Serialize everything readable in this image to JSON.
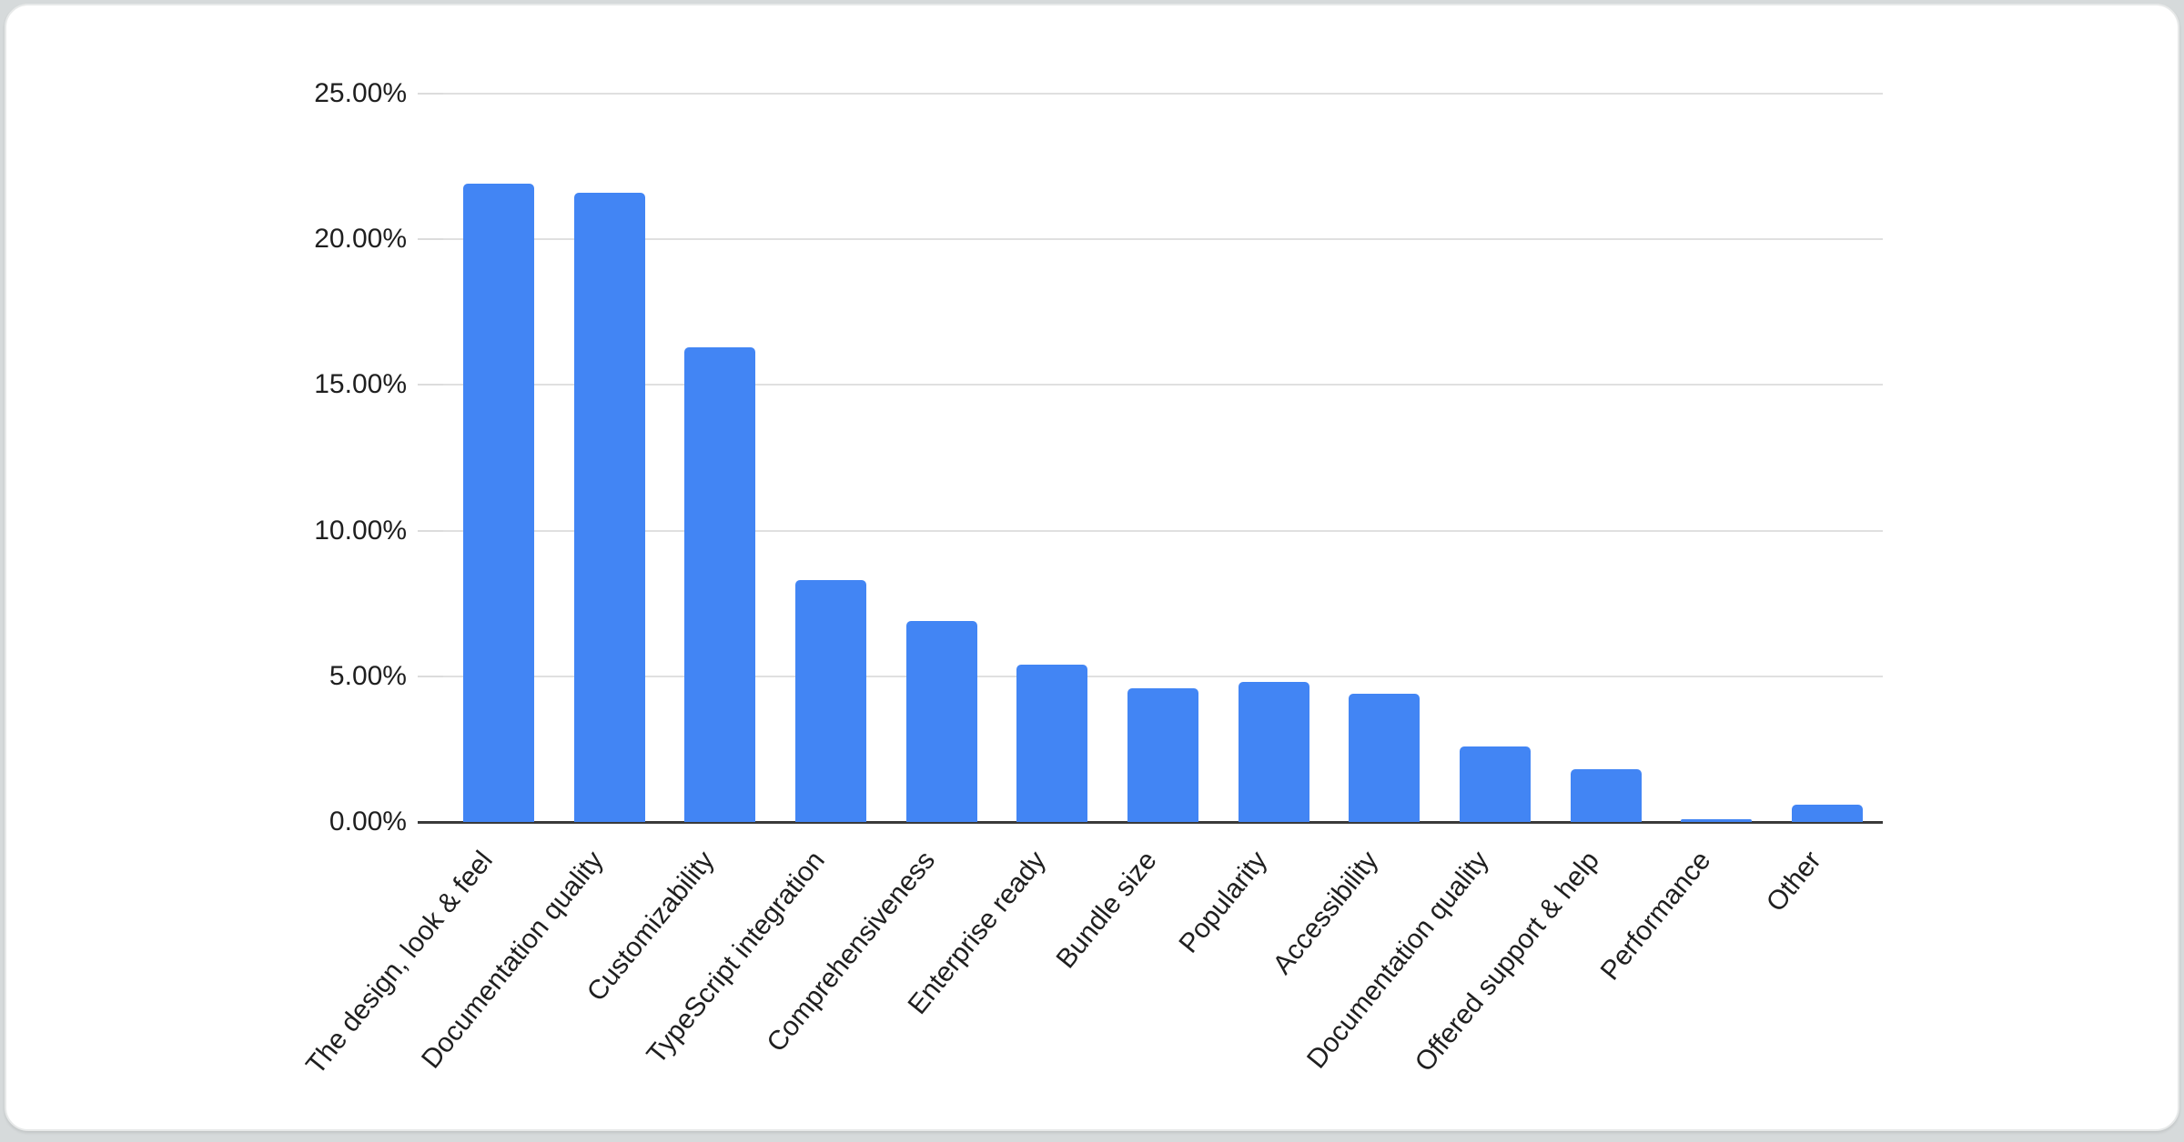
{
  "page": {
    "background_color": "#d6dadb",
    "card_background_color": "#ffffff"
  },
  "chart_data": {
    "type": "bar",
    "title": "",
    "xlabel": "",
    "ylabel": "",
    "categories": [
      "The design, look & feel",
      "Documentation quality",
      "Customizability",
      "TypeScript integration",
      "Comprehensiveness",
      "Enterprise ready",
      "Bundle size",
      "Popularity",
      "Accessibility",
      "Documentation quality",
      "Offered support & help",
      "Performance",
      "Other"
    ],
    "values": [
      21.9,
      21.6,
      16.3,
      8.3,
      6.9,
      5.4,
      4.6,
      4.8,
      4.4,
      2.6,
      1.8,
      0.1,
      0.6
    ],
    "value_unit": "percent",
    "ylim": [
      0,
      25
    ],
    "y_tick_step": 5,
    "y_tick_labels": [
      "0.00%",
      "5.00%",
      "10.00%",
      "15.00%",
      "20.00%",
      "25.00%"
    ],
    "grid": true,
    "legend": false,
    "colors": {
      "bar": "#4285f4",
      "gridline": "#e0e0e0",
      "axis_line": "#3a3a3a",
      "label_text": "#1f1f1f"
    }
  }
}
